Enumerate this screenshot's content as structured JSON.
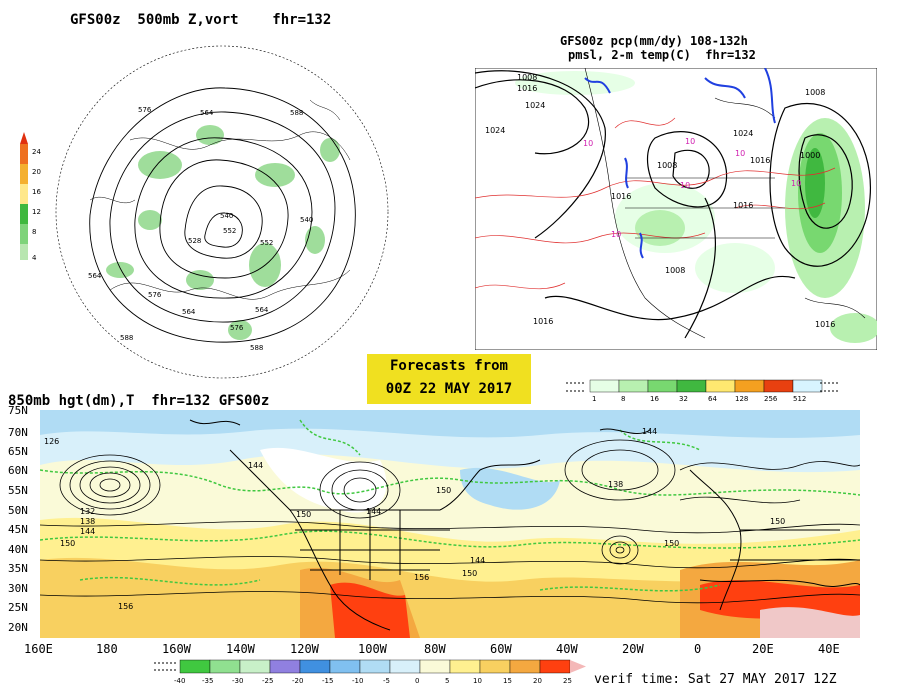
{
  "polar_panel": {
    "title": "GFS00z  500mb Z,vort    fhr=132",
    "colorbar_ticks": [
      "24",
      "20",
      "16",
      "12",
      "8",
      "4"
    ],
    "colorbar_colors": [
      "#b8e6b0",
      "#7ed37a",
      "#3fb83f",
      "#ffe88a",
      "#f4b030",
      "#ee7020"
    ],
    "contour_labels": [
      "576",
      "564",
      "588",
      "552",
      "540",
      "528",
      "564",
      "576",
      "588",
      "564",
      "552",
      "540",
      "576",
      "564",
      "588"
    ]
  },
  "precip_panel": {
    "title_line1": "GFS00z pcp(mm/dy) 108-132h",
    "title_line2": "pmsl, 2-m temp(C)  fhr=132",
    "isobar_labels": [
      "1008",
      "1016",
      "1024",
      "1024",
      "1024",
      "1016",
      "1008",
      "1016",
      "1008",
      "1016",
      "1016",
      "1008",
      "1016",
      "1000"
    ],
    "temp_labels": [
      "10",
      "10",
      "10",
      "10",
      "10",
      "10"
    ],
    "colorbar_ticks": [
      "1",
      "8",
      "16",
      "32",
      "64",
      "128",
      "256",
      "512"
    ],
    "colorbar_colors": [
      "#e6ffe6",
      "#b8f0b0",
      "#78d870",
      "#40b840",
      "#ffe870",
      "#f4a020",
      "#e84010",
      "#d8f4ff"
    ]
  },
  "forecast_box": {
    "line1": "Forecasts from",
    "line2": "00Z 22 MAY 2017",
    "bg_color": "#f0e020"
  },
  "main_panel": {
    "title": "850mb hgt(dm),T  fhr=132 GFS00z",
    "lat_labels": [
      "75N",
      "70N",
      "65N",
      "60N",
      "55N",
      "50N",
      "45N",
      "40N",
      "35N",
      "30N",
      "25N",
      "20N"
    ],
    "lon_labels": [
      "160E",
      "180",
      "160W",
      "140W",
      "120W",
      "100W",
      "80W",
      "60W",
      "40W",
      "20W",
      "0",
      "20E",
      "40E"
    ],
    "height_labels": [
      "126",
      "144",
      "132",
      "138",
      "144",
      "150",
      "144",
      "150",
      "144",
      "150",
      "138",
      "144",
      "150",
      "156",
      "156",
      "150",
      "150",
      "138",
      "144",
      "150",
      "156",
      "160",
      "150"
    ],
    "colorbar_ticks": [
      "-40",
      "-35",
      "-30",
      "-25",
      "-20",
      "-15",
      "-10",
      "-5",
      "0",
      "5",
      "10",
      "15",
      "20",
      "25"
    ],
    "colorbar_colors": [
      "#40c840",
      "#90e090",
      "#c8f0c8",
      "#9080e0",
      "#4090e0",
      "#80c0f0",
      "#b0dcf4",
      "#d8f0fa",
      "#fafad8",
      "#fff090",
      "#f8d060",
      "#f4a840",
      "#ff4010"
    ],
    "verif_time": "verif time: Sat 27 MAY 2017 12Z"
  }
}
